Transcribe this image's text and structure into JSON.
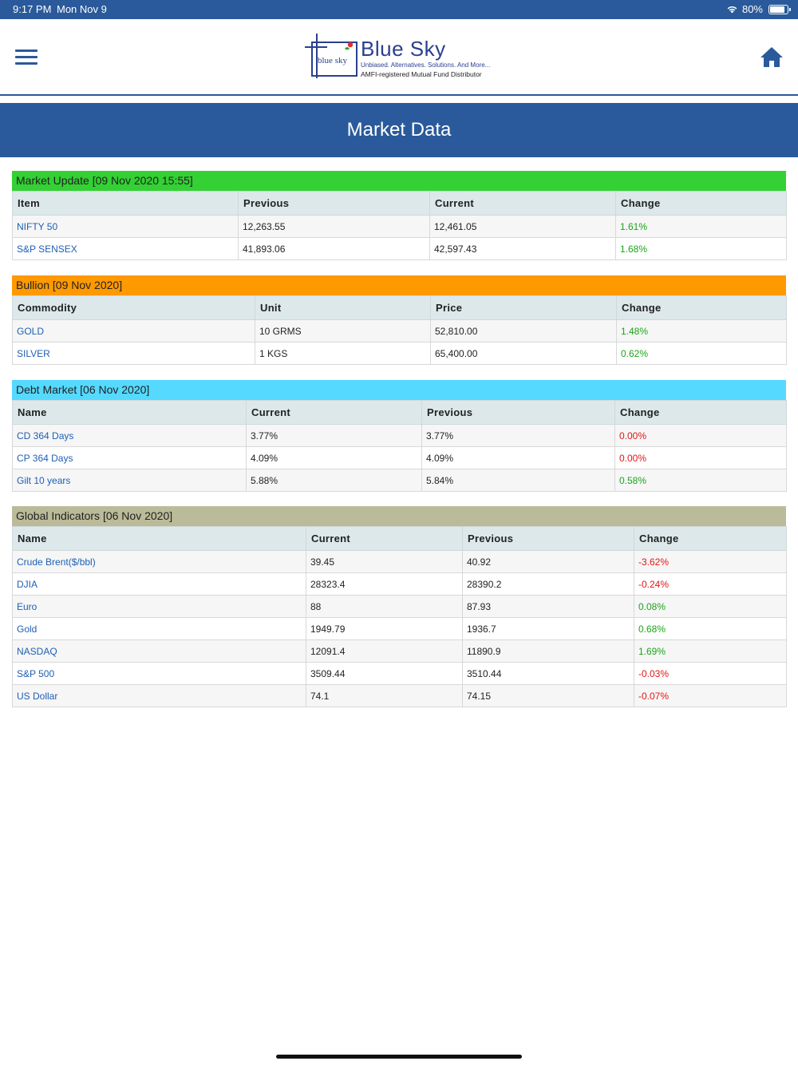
{
  "status_bar": {
    "time": "9:17 PM",
    "date": "Mon Nov 9",
    "battery": "80%"
  },
  "logo": {
    "small": "blue sky",
    "title": "Blue Sky",
    "tagline": "Unbiased. Alternatives. Solutions. And More...",
    "subtitle": "AMFI-registered Mutual Fund Distributor"
  },
  "page_title": "Market Data",
  "sections": [
    {
      "title": "Market Update [09 Nov 2020 15:55]",
      "color": "#33d133",
      "columns": [
        "Item",
        "Previous",
        "Current",
        "Change"
      ],
      "rows": [
        [
          "NIFTY 50",
          "12,263.55",
          "12,461.05",
          "1.61%"
        ],
        [
          "S&P SENSEX",
          "41,893.06",
          "42,597.43",
          "1.68%"
        ]
      ]
    },
    {
      "title": "Bullion [09 Nov 2020]",
      "color": "#ff9900",
      "columns": [
        "Commodity",
        "Unit",
        "Price",
        "Change"
      ],
      "rows": [
        [
          "GOLD",
          "10 GRMS",
          "52,810.00",
          "1.48%"
        ],
        [
          "SILVER",
          "1 KGS",
          "65,400.00",
          "0.62%"
        ]
      ]
    },
    {
      "title": "Debt Market [06 Nov 2020]",
      "color": "#55d9ff",
      "columns": [
        "Name",
        "Current",
        "Previous",
        "Change"
      ],
      "rows": [
        [
          "CD 364 Days",
          "3.77%",
          "3.77%",
          "0.00%"
        ],
        [
          "CP 364 Days",
          "4.09%",
          "4.09%",
          "0.00%"
        ],
        [
          "Gilt 10 years",
          "5.88%",
          "5.84%",
          "0.58%"
        ]
      ]
    },
    {
      "title": "Global Indicators [06 Nov 2020]",
      "color": "#bbbb99",
      "columns": [
        "Name",
        "Current",
        "Previous",
        "Change"
      ],
      "rows": [
        [
          "Crude Brent($/bbl)",
          "39.45",
          "40.92",
          "-3.62%"
        ],
        [
          "DJIA",
          "28323.4",
          "28390.2",
          "-0.24%"
        ],
        [
          "Euro",
          "88",
          "87.93",
          "0.08%"
        ],
        [
          "Gold",
          "1949.79",
          "1936.7",
          "0.68%"
        ],
        [
          "NASDAQ",
          "12091.4",
          "11890.9",
          "1.69%"
        ],
        [
          "S&P 500",
          "3509.44",
          "3510.44",
          "-0.03%"
        ],
        [
          "US Dollar",
          "74.1",
          "74.15",
          "-0.07%"
        ]
      ]
    }
  ],
  "change_status": {
    "0": [
      "pos",
      "pos"
    ],
    "1": [
      "pos",
      "pos"
    ],
    "2": [
      "neg",
      "neg",
      "pos"
    ],
    "3": [
      "neg",
      "neg",
      "pos",
      "pos",
      "pos",
      "neg",
      "neg"
    ]
  },
  "icons": {
    "menu": "hamburger-menu-icon",
    "home": "home-icon"
  },
  "colors": {
    "brand_blue": "#2a5a9b",
    "link_blue": "#1f5fb4",
    "positive": "#1aa51a",
    "negative": "#e11616"
  }
}
